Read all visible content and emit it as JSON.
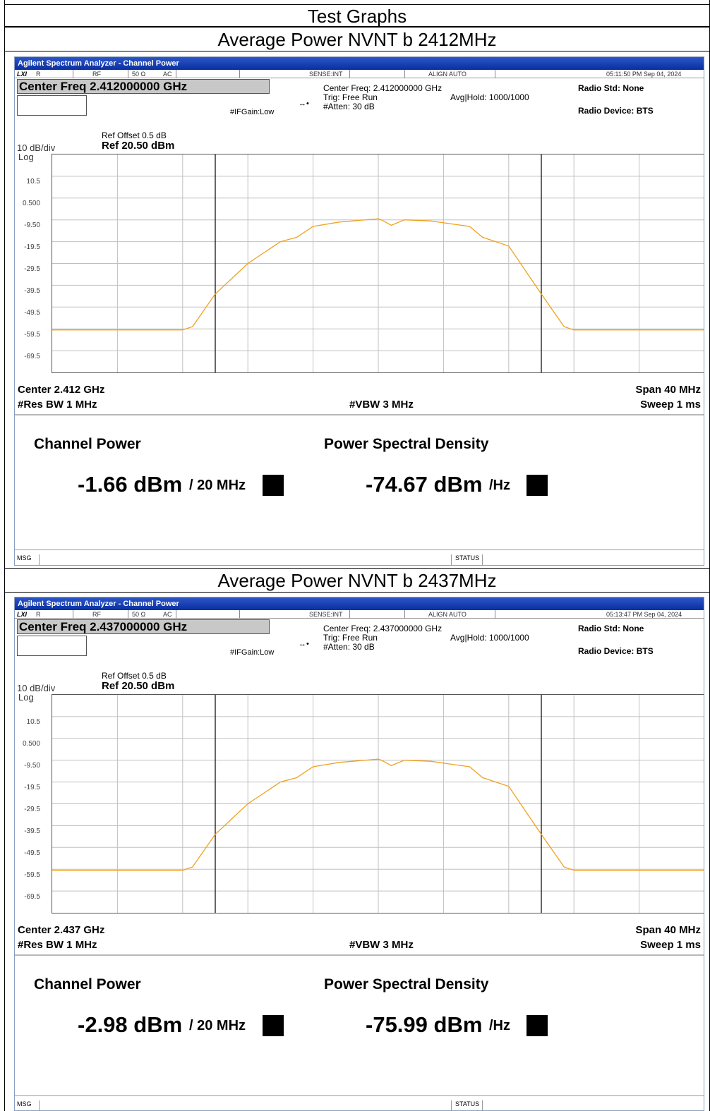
{
  "page_title": "Test Graphs",
  "screens": [
    {
      "caption": "Average Power NVNT b 2412MHz",
      "window_title": "Agilent Spectrum Analyzer - Channel Power",
      "status": {
        "lxi": "LXI",
        "r": "R",
        "rf": "RF",
        "ohm": "50 Ω",
        "ac": "AC",
        "sense": "SENSE:INT",
        "align": "ALIGN AUTO",
        "timestamp": "05:11:50 PM Sep 04, 2024"
      },
      "center_freq_box": "Center Freq 2.412000000 GHz",
      "ifgain": "#IFGain:Low",
      "center_freq_info": "Center Freq: 2.412000000 GHz",
      "trig": "Trig: Free Run",
      "avg_hold": "Avg|Hold: 1000/1000",
      "atten": "#Atten: 30 dB",
      "radio_std": "Radio Std: None",
      "radio_device": "Radio Device: BTS",
      "ref_offset": "Ref Offset 0.5 dB",
      "ref_value": "Ref 20.50 dBm",
      "scale": "10 dB/div",
      "log": "Log",
      "yticks": [
        "10.5",
        "0.500",
        "-9.50",
        "-19.5",
        "-29.5",
        "-39.5",
        "-49.5",
        "-59.5",
        "-69.5"
      ],
      "center": "Center  2.412 GHz",
      "span": "Span 40 MHz",
      "res_bw": "#Res BW  1 MHz",
      "vbw": "#VBW  3 MHz",
      "sweep": "Sweep  1 ms",
      "channel_power_label": "Channel Power",
      "channel_power_value": "-1.66 dBm",
      "channel_power_unit": "/ 20 MHz",
      "psd_label": "Power Spectral Density",
      "psd_value": "-74.67 dBm",
      "psd_unit": "/Hz",
      "msg": "MSG",
      "status_label": "STATUS",
      "trace_color": "#f0a020"
    },
    {
      "caption": "Average Power NVNT b 2437MHz",
      "window_title": "Agilent Spectrum Analyzer - Channel Power",
      "status": {
        "lxi": "LXI",
        "r": "R",
        "rf": "RF",
        "ohm": "50 Ω",
        "ac": "AC",
        "sense": "SENSE:INT",
        "align": "ALIGN AUTO",
        "timestamp": "05:13:47 PM Sep 04, 2024"
      },
      "center_freq_box": "Center Freq 2.437000000 GHz",
      "ifgain": "#IFGain:Low",
      "center_freq_info": "Center Freq: 2.437000000 GHz",
      "trig": "Trig: Free Run",
      "avg_hold": "Avg|Hold: 1000/1000",
      "atten": "#Atten: 30 dB",
      "radio_std": "Radio Std: None",
      "radio_device": "Radio Device: BTS",
      "ref_offset": "Ref Offset 0.5 dB",
      "ref_value": "Ref 20.50 dBm",
      "scale": "10 dB/div",
      "log": "Log",
      "yticks": [
        "10.5",
        "0.500",
        "-9.50",
        "-19.5",
        "-29.5",
        "-39.5",
        "-49.5",
        "-59.5",
        "-69.5"
      ],
      "center": "Center  2.437 GHz",
      "span": "Span 40 MHz",
      "res_bw": "#Res BW  1 MHz",
      "vbw": "#VBW  3 MHz",
      "sweep": "Sweep  1 ms",
      "channel_power_label": "Channel Power",
      "channel_power_value": "-2.98 dBm",
      "channel_power_unit": "/ 20 MHz",
      "psd_label": "Power Spectral Density",
      "psd_value": "-75.99 dBm",
      "psd_unit": "/Hz",
      "msg": "MSG",
      "status_label": "STATUS",
      "trace_color": "#f0a020"
    }
  ]
}
